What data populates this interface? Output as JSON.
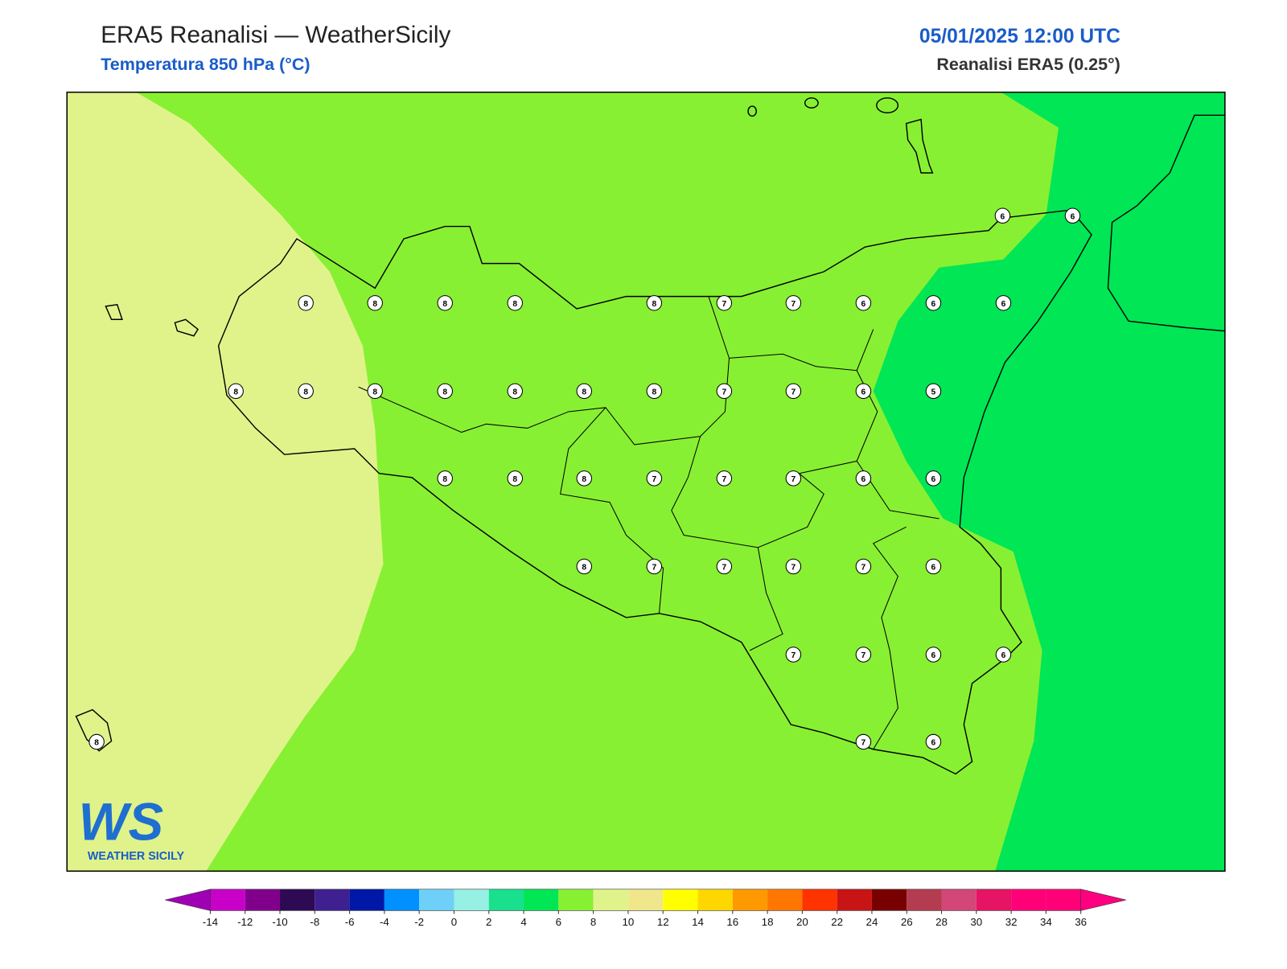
{
  "header": {
    "title": "ERA5 Reanalisi — WeatherSicily",
    "subtitle": "Temperatura 850 hPa (°C)",
    "datetime": "05/01/2025 12:00 UTC",
    "source": "Reanalisi ERA5 (0.25°)"
  },
  "map": {
    "stations": [
      6,
      6,
      8,
      8,
      8,
      8,
      8,
      7,
      7,
      6,
      6,
      6,
      8,
      8,
      8,
      8,
      8,
      8,
      8,
      7,
      7,
      6,
      5,
      8,
      8,
      8,
      7,
      7,
      7,
      6,
      6,
      8,
      7,
      7,
      7,
      7,
      6,
      7,
      7,
      6,
      6,
      8,
      7,
      6
    ]
  },
  "colorbar": {
    "ticks": [
      -14,
      -12,
      -10,
      -8,
      -6,
      -4,
      -2,
      0,
      2,
      4,
      6,
      8,
      10,
      12,
      14,
      16,
      18,
      20,
      22,
      24,
      26,
      28,
      30,
      32,
      34,
      36
    ],
    "colors": [
      "#c800c8",
      "#80008c",
      "#2e0a54",
      "#3e2090",
      "#0018a8",
      "#0090ff",
      "#6ed0f8",
      "#96f0e4",
      "#18e08c",
      "#00e655",
      "#88f032",
      "#e0f38a",
      "#f0e68c",
      "#ffff00",
      "#ffd700",
      "#ff9900",
      "#ff7700",
      "#ff3300",
      "#c81414",
      "#780000",
      "#b43c50",
      "#d24678",
      "#e61464",
      "#ff0078",
      "#ff0078"
    ],
    "extend_colors": [
      "#a000b4",
      "#ff0080"
    ]
  },
  "logo": {
    "mark": "WS",
    "name": "WEATHER SICILY"
  }
}
